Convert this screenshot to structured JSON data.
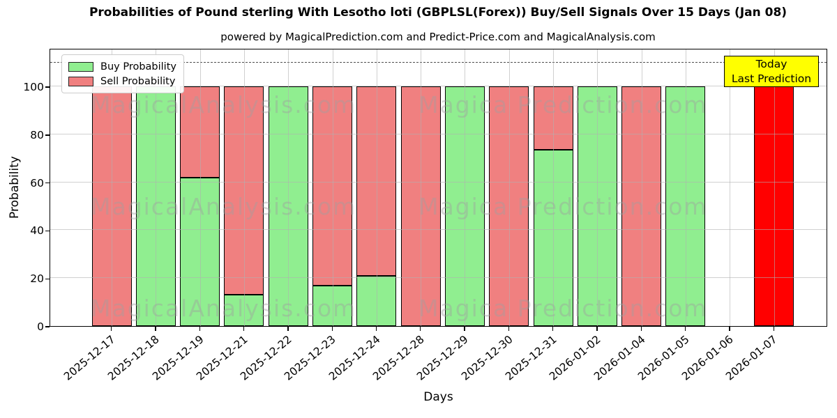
{
  "title": "Probabilities of Pound sterling With Lesotho loti (GBPLSL(Forex)) Buy/Sell Signals Over 15 Days (Jan 08)",
  "subtitle": "powered by MagicalPrediction.com and Predict-Price.com and MagicalAnalysis.com",
  "annotation": {
    "line1": "Today",
    "line2": "Last Prediction",
    "bg_color": "#ffff00"
  },
  "watermarks": {
    "left": "MagicalAnalysis.com",
    "right": "Magica Prediction.com",
    "color": "#a0a0a0"
  },
  "legend": {
    "position": "upper left"
  },
  "colors": {
    "buy": "#90ee90",
    "sell": "#f08080",
    "today": "#ff0000",
    "grid": "#b0b0b0",
    "bar_edge": "#000000",
    "dashed_line": "#4d4d4d"
  },
  "chart_data": {
    "type": "bar",
    "stacked": true,
    "title": "Probabilities of Pound sterling With Lesotho loti (GBPLSL(Forex)) Buy/Sell Signals Over 15 Days (Jan 08)",
    "xlabel": "Days",
    "ylabel": "Probability",
    "ylim": [
      0,
      116
    ],
    "yticks": [
      0,
      20,
      40,
      60,
      80,
      100
    ],
    "grid": true,
    "legend_position": "upper left",
    "dashed_hline": 110,
    "categories": [
      "2025-12-17",
      "2025-12-18",
      "2025-12-19",
      "2025-12-21",
      "2025-12-22",
      "2025-12-23",
      "2025-12-24",
      "2025-12-28",
      "2025-12-29",
      "2025-12-30",
      "2025-12-31",
      "2026-01-02",
      "2026-01-04",
      "2026-01-05",
      "2026-01-06",
      "2026-01-07"
    ],
    "series": [
      {
        "name": "Buy Probability",
        "color": "#90ee90",
        "values": [
          0,
          100,
          62,
          13,
          100,
          17,
          21,
          0,
          100,
          0,
          73.5,
          100,
          0,
          100,
          0,
          0
        ]
      },
      {
        "name": "Sell Probability",
        "color": "#f08080",
        "values": [
          100,
          0,
          38,
          87,
          0,
          83,
          79,
          100,
          0,
          100,
          26.5,
          0,
          100,
          0,
          0,
          0
        ]
      },
      {
        "name": "Today Last Prediction",
        "color": "#ff0000",
        "in_legend": false,
        "values": [
          0,
          0,
          0,
          0,
          0,
          0,
          0,
          0,
          0,
          0,
          0,
          0,
          0,
          0,
          0,
          100
        ]
      }
    ]
  }
}
